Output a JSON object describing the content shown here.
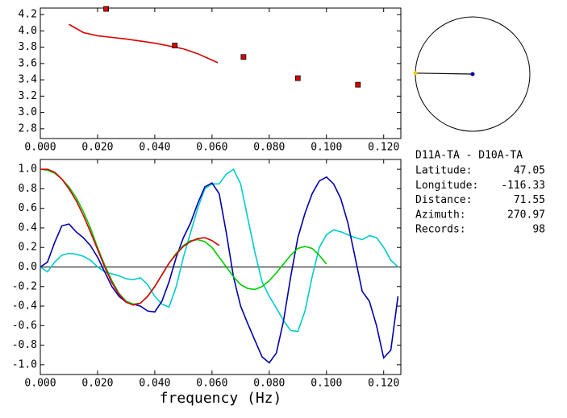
{
  "chart_data": [
    {
      "type": "line",
      "xlim": [
        0,
        0.126
      ],
      "ylim": [
        2.68,
        4.28
      ],
      "xticks": [
        {
          "value": 0,
          "label": "0.000"
        },
        {
          "value": 0.02,
          "label": "0.020"
        },
        {
          "value": 0.04,
          "label": "0.040"
        },
        {
          "value": 0.06,
          "label": "0.060"
        },
        {
          "value": 0.08,
          "label": "0.080"
        },
        {
          "value": 0.1,
          "label": "0.100"
        },
        {
          "value": 0.12,
          "label": "0.120"
        }
      ],
      "yticks": [
        {
          "value": 2.8,
          "label": "2.8"
        },
        {
          "value": 3.0,
          "label": "3.0"
        },
        {
          "value": 3.2,
          "label": "3.2"
        },
        {
          "value": 3.4,
          "label": "3.4"
        },
        {
          "value": 3.6,
          "label": "3.6"
        },
        {
          "value": 3.8,
          "label": "3.8"
        },
        {
          "value": 4.0,
          "label": "4.0"
        },
        {
          "value": 4.2,
          "label": "4.2"
        }
      ],
      "series": [
        {
          "color": "#dd0000",
          "marker": "none",
          "x": [
            0.01,
            0.015,
            0.02,
            0.03,
            0.04,
            0.05,
            0.055,
            0.062
          ],
          "values": [
            4.08,
            3.98,
            3.94,
            3.9,
            3.85,
            3.78,
            3.72,
            3.61
          ]
        },
        {
          "color": "#dd0000",
          "marker": "square",
          "x": [
            0.023,
            0.047,
            0.071,
            0.09,
            0.111
          ],
          "values": [
            4.27,
            3.82,
            3.68,
            3.42,
            3.34
          ]
        }
      ]
    },
    {
      "type": "line",
      "xlabel": "frequency (Hz)",
      "xlim": [
        0,
        0.126
      ],
      "ylim": [
        -1.1,
        1.1
      ],
      "zero_line": true,
      "xticks": [
        {
          "value": 0,
          "label": "0.000"
        },
        {
          "value": 0.02,
          "label": "0.020"
        },
        {
          "value": 0.04,
          "label": "0.040"
        },
        {
          "value": 0.06,
          "label": "0.060"
        },
        {
          "value": 0.08,
          "label": "0.080"
        },
        {
          "value": 0.1,
          "label": "0.100"
        },
        {
          "value": 0.12,
          "label": "0.120"
        }
      ],
      "yticks": [
        {
          "value": -1,
          "label": "-1.0"
        },
        -0.8,
        -0.6,
        -0.4,
        -0.2,
        {
          "value": 0,
          "label": "0.0"
        },
        0.2,
        0.4,
        0.6,
        0.8,
        {
          "value": 1,
          "label": "1.0"
        }
      ],
      "x": [
        0,
        0.0025,
        0.005,
        0.0075,
        0.01,
        0.0125,
        0.015,
        0.0175,
        0.02,
        0.0225,
        0.025,
        0.0275,
        0.03,
        0.0325,
        0.035,
        0.0375,
        0.04,
        0.0425,
        0.045,
        0.0475,
        0.05,
        0.0525,
        0.055,
        0.0575,
        0.06,
        0.0625,
        0.065,
        0.0675,
        0.07,
        0.0725,
        0.075,
        0.0775,
        0.08,
        0.0825,
        0.085,
        0.0875,
        0.09,
        0.0925,
        0.095,
        0.0975,
        0.1,
        0.1025,
        0.105,
        0.1075,
        0.11,
        0.1125,
        0.115,
        0.1175,
        0.12,
        0.1225,
        0.125
      ],
      "series": [
        {
          "color": "#00cccc",
          "values": [
            0.0,
            -0.05,
            0.05,
            0.12,
            0.14,
            0.13,
            0.11,
            0.07,
            0.0,
            -0.05,
            -0.07,
            -0.09,
            -0.12,
            -0.13,
            -0.11,
            -0.18,
            -0.3,
            -0.38,
            -0.41,
            -0.2,
            0.1,
            0.35,
            0.6,
            0.8,
            0.85,
            0.85,
            0.95,
            1.0,
            0.85,
            0.5,
            0.15,
            -0.15,
            -0.3,
            -0.42,
            -0.55,
            -0.65,
            -0.66,
            -0.45,
            -0.1,
            0.2,
            0.33,
            0.38,
            0.36,
            0.33,
            0.3,
            0.28,
            0.32,
            0.3,
            0.2,
            0.07,
            0.0
          ]
        },
        {
          "color": "#0000aa",
          "values": [
            0.0,
            0.05,
            0.25,
            0.42,
            0.44,
            0.36,
            0.3,
            0.22,
            0.1,
            -0.05,
            -0.2,
            -0.3,
            -0.36,
            -0.38,
            -0.4,
            -0.45,
            -0.46,
            -0.35,
            -0.15,
            0.1,
            0.3,
            0.45,
            0.65,
            0.82,
            0.86,
            0.75,
            0.35,
            -0.1,
            -0.4,
            -0.58,
            -0.75,
            -0.92,
            -0.98,
            -0.88,
            -0.55,
            -0.1,
            0.3,
            0.55,
            0.75,
            0.88,
            0.92,
            0.85,
            0.7,
            0.45,
            0.1,
            -0.25,
            -0.35,
            -0.6,
            -0.93,
            -0.85,
            -0.3
          ]
        },
        {
          "color": "#00cc00",
          "values": [
            1.0,
            0.99,
            0.96,
            0.9,
            0.82,
            0.71,
            0.57,
            0.4,
            0.2,
            0.02,
            -0.14,
            -0.27,
            -0.35,
            -0.38,
            -0.37,
            -0.3,
            -0.2,
            -0.08,
            0.04,
            0.14,
            0.22,
            0.27,
            0.28,
            0.26,
            0.2,
            0.1,
            0.0,
            -0.1,
            -0.18,
            -0.22,
            -0.23,
            -0.2,
            -0.14,
            -0.06,
            0.03,
            0.12,
            0.19,
            0.21,
            0.19,
            0.12,
            0.03,
            null,
            null,
            null,
            null,
            null,
            null,
            null,
            null,
            null,
            null
          ]
        },
        {
          "color": "#dd0000",
          "values": [
            1.0,
            1.0,
            0.97,
            0.9,
            0.8,
            0.68,
            0.53,
            0.36,
            0.18,
            0.0,
            -0.16,
            -0.28,
            -0.36,
            -0.39,
            -0.37,
            -0.3,
            -0.2,
            -0.08,
            0.04,
            0.13,
            0.21,
            0.26,
            0.29,
            0.3,
            0.27,
            0.22,
            null,
            null,
            null,
            null,
            null,
            null,
            null,
            null,
            null,
            null,
            null,
            null,
            null,
            null,
            null,
            null,
            null,
            null,
            null,
            null,
            null,
            null,
            null,
            null,
            null
          ]
        }
      ]
    }
  ],
  "station": {
    "title": "D11A-TA - D10A-TA",
    "fields": [
      {
        "label": "Latitude:",
        "value": 47.05
      },
      {
        "label": "Longitude:",
        "value": -116.33
      },
      {
        "label": "Distance:",
        "value": 71.55
      },
      {
        "label": "Azimuth:",
        "value": 270.97
      },
      {
        "label": "Records:",
        "value": 98
      }
    ],
    "azimuth_field": 3
  }
}
